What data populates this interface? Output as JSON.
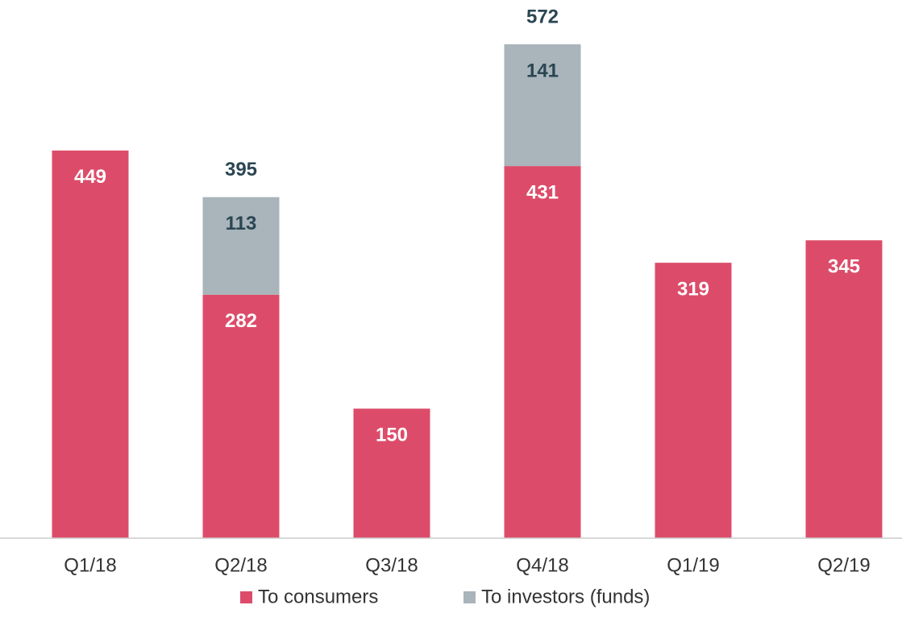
{
  "chart_data": {
    "type": "stacked_bar",
    "categories": [
      "Q1/18",
      "Q2/18",
      "Q3/18",
      "Q4/18",
      "Q1/19",
      "Q2/19"
    ],
    "series": [
      {
        "name": "To consumers",
        "color": "#dc4c6a",
        "values": [
          449,
          282,
          150,
          431,
          319,
          345
        ]
      },
      {
        "name": "To investors (funds)",
        "color": "#a9b4bb",
        "values": [
          null,
          113,
          null,
          141,
          null,
          null
        ]
      }
    ],
    "totals": [
      null,
      395,
      null,
      572,
      null,
      null
    ],
    "legend": "bottom"
  }
}
